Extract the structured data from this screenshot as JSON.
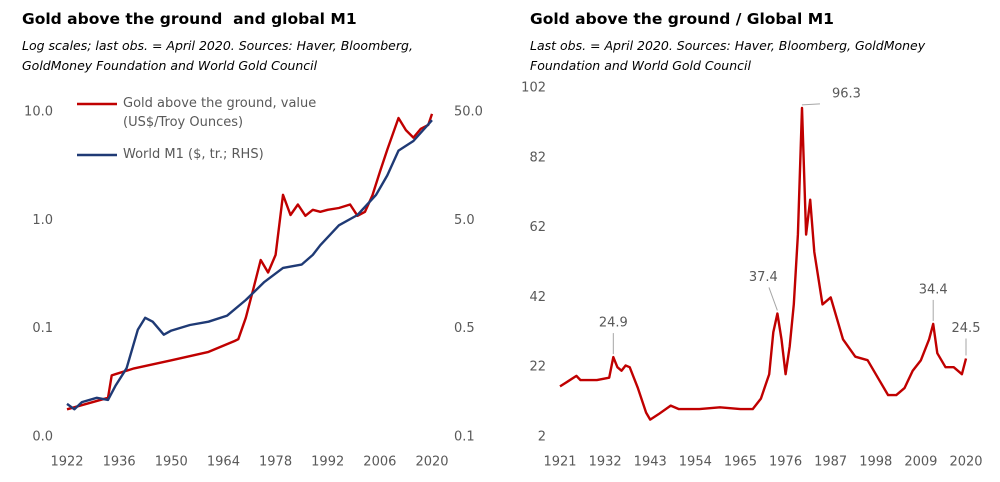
{
  "chart_data": [
    {
      "type": "line",
      "title": "Gold above the ground  and global M1",
      "subtitle": "Log scales; last obs. = April 2020. Sources: Haver, Bloomberg, GoldMoney Foundation and World Gold Council",
      "log_scale": true,
      "legend": "top-left",
      "xlim": [
        1922,
        2020
      ],
      "xticks": [
        1922,
        1936,
        1950,
        1964,
        1978,
        1992,
        2006,
        2020
      ],
      "ylim": [
        0.01,
        10
      ],
      "yticks": [
        {
          "value": 0.01,
          "label": "0.0"
        },
        {
          "value": 0.1,
          "label": "0.1"
        },
        {
          "value": 1,
          "label": "1.0"
        },
        {
          "value": 10,
          "label": "10.0"
        }
      ],
      "y2lim": [
        0.05,
        50
      ],
      "y2ticks": [
        {
          "value": 0.05,
          "label": "0.1"
        },
        0.5,
        {
          "value": 5,
          "label": "5.0"
        },
        {
          "value": 50,
          "label": "50.0"
        }
      ],
      "series": [
        {
          "name": "Gold above the ground, value (US$/Troy Ounces)",
          "color": "#c00000",
          "x": [
            1922,
            1933,
            1934,
            1935,
            1940,
            1950,
            1960,
            1967,
            1968,
            1970,
            1972,
            1974,
            1976,
            1978,
            1980,
            1982,
            1984,
            1986,
            1988,
            1990,
            1992,
            1995,
            1998,
            2000,
            2002,
            2004,
            2006,
            2008,
            2011,
            2013,
            2015,
            2017,
            2019,
            2020
          ],
          "values": [
            0.018,
            0.023,
            0.037,
            0.038,
            0.043,
            0.051,
            0.061,
            0.077,
            0.08,
            0.126,
            0.23,
            0.43,
            0.33,
            0.48,
            1.72,
            1.12,
            1.4,
            1.1,
            1.25,
            1.2,
            1.25,
            1.3,
            1.4,
            1.1,
            1.2,
            1.7,
            2.8,
            4.5,
            8.8,
            6.8,
            5.8,
            7,
            7.6,
            9.6
          ]
        },
        {
          "name": "World M1 ($, tr.; RHS)",
          "color": "#1f3a75",
          "axis": "y2",
          "x": [
            1922,
            1924,
            1926,
            1930,
            1933,
            1935,
            1938,
            1941,
            1943,
            1945,
            1948,
            1950,
            1955,
            1960,
            1965,
            1970,
            1975,
            1980,
            1985,
            1988,
            1990,
            1995,
            2000,
            2005,
            2008,
            2011,
            2015,
            2020
          ],
          "values": [
            0.101,
            0.09,
            0.105,
            0.115,
            0.11,
            0.148,
            0.216,
            0.488,
            0.63,
            0.58,
            0.44,
            0.48,
            0.54,
            0.58,
            0.66,
            0.92,
            1.35,
            1.82,
            1.95,
            2.4,
            2.95,
            4.5,
            5.6,
            8.6,
            13,
            22,
            27,
            42
          ]
        }
      ]
    },
    {
      "type": "line",
      "title": "Gold above the ground / Global M1",
      "subtitle": "Last obs. = April 2020. Sources: Haver, Bloomberg, GoldMoney Foundation and World Gold Council",
      "xlim": [
        1921,
        2020
      ],
      "xticks": [
        1921,
        1932,
        1943,
        1954,
        1965,
        1976,
        1987,
        1998,
        2009,
        2020
      ],
      "ylim": [
        2,
        102
      ],
      "yticks": [
        2,
        22,
        42,
        62,
        82,
        102
      ],
      "series": [
        {
          "color": "#c00000",
          "x": [
            1921,
            1923,
            1925,
            1926,
            1930,
            1933,
            1934,
            1935,
            1936,
            1937,
            1938,
            1940,
            1942,
            1943,
            1945,
            1948,
            1950,
            1955,
            1960,
            1965,
            1968,
            1970,
            1972,
            1973,
            1974,
            1975,
            1976,
            1977,
            1978,
            1979,
            1980,
            1981,
            1982,
            1983,
            1985,
            1987,
            1990,
            1993,
            1996,
            1999,
            2001,
            2003,
            2005,
            2007,
            2009,
            2011,
            2012,
            2013,
            2015,
            2017,
            2019,
            2020
          ],
          "values": [
            16.5,
            18,
            19.5,
            18.3,
            18.3,
            19,
            24.9,
            22,
            21,
            22.5,
            22,
            16,
            9,
            7,
            8.5,
            11,
            10,
            10,
            10.5,
            10,
            10,
            13,
            20,
            32,
            37.4,
            30,
            20,
            28,
            40,
            60,
            96.3,
            60,
            70,
            55,
            40,
            42,
            30,
            25,
            24,
            18,
            14,
            14,
            16,
            21,
            24,
            30,
            34.4,
            26,
            22,
            22,
            20,
            24.5
          ]
        }
      ],
      "annotations": [
        {
          "x": 1934,
          "y": 24.9
        },
        {
          "x": 1974,
          "y": 37.4
        },
        {
          "x": 1980,
          "y": 96.3
        },
        {
          "x": 2012,
          "y": 34.4
        },
        {
          "x": 2020,
          "y": 24.5
        }
      ]
    }
  ]
}
